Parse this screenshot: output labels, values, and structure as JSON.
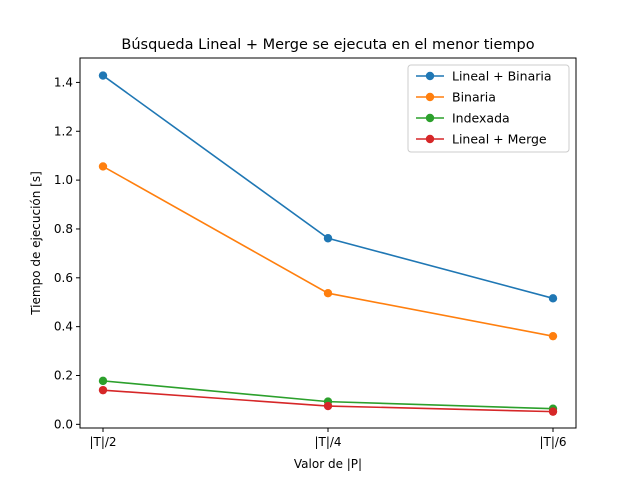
{
  "chart_data": {
    "type": "line",
    "title": "Búsqueda Lineal + Merge se ejecuta en el menor tiempo",
    "xlabel": "Valor de |P|",
    "ylabel": "Tiempo de ejecución [s]",
    "categories": [
      "|T|/2",
      "|T|/4",
      "|T|/6"
    ],
    "ylim": [
      -0.015,
      1.5
    ],
    "yticks": [
      "0.0",
      "0.2",
      "0.4",
      "0.6",
      "0.8",
      "1.0",
      "1.2",
      "1.4"
    ],
    "grid": false,
    "legend_position": "top-right",
    "series": [
      {
        "name": "Lineal + Binaria",
        "color": "#1f77b4",
        "values": [
          1.428,
          0.762,
          0.516
        ]
      },
      {
        "name": "Binaria",
        "color": "#ff7f0e",
        "values": [
          1.056,
          0.537,
          0.361
        ]
      },
      {
        "name": "Indexada",
        "color": "#2ca02c",
        "values": [
          0.178,
          0.093,
          0.064
        ]
      },
      {
        "name": "Lineal + Merge",
        "color": "#d62728",
        "values": [
          0.14,
          0.075,
          0.052
        ]
      }
    ]
  }
}
